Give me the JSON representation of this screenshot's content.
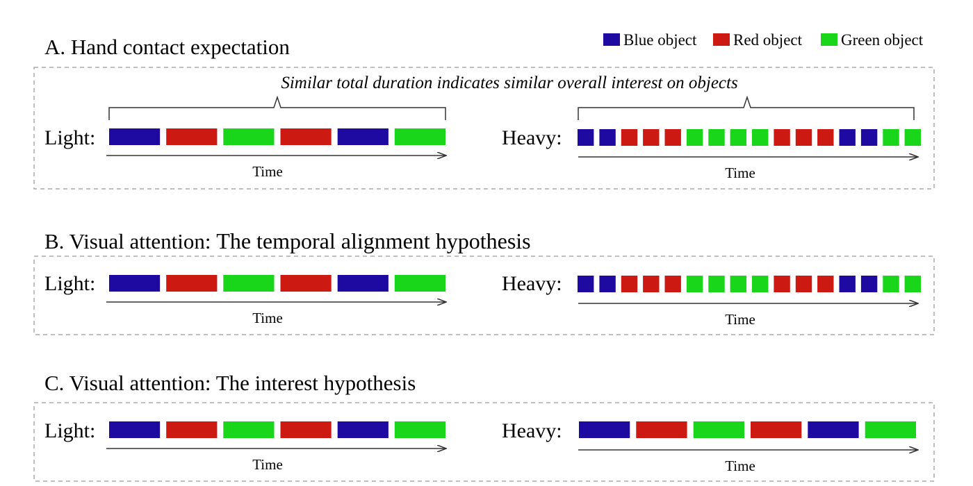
{
  "colors": {
    "blue": "#1e0aa0",
    "red": "#cc1a12",
    "green": "#1ad61a",
    "border": "#aaaaaa",
    "axis": "#333333"
  },
  "legend": [
    {
      "color": "blue",
      "label": "Blue object"
    },
    {
      "color": "red",
      "label": "Red object"
    },
    {
      "color": "green",
      "label": "Green object"
    }
  ],
  "panels": [
    {
      "title_a": "A. Hand contact expectation",
      "title_b": "",
      "note": "Similar total duration indicates similar overall interest on objects",
      "light": {
        "label": "Light:",
        "time_label": "Time",
        "sequence": [
          "blue",
          "red",
          "green",
          "red",
          "blue",
          "green"
        ]
      },
      "heavy": {
        "label": "Heavy:",
        "time_label": "Time",
        "sequence": [
          "blue",
          "blue",
          "red",
          "red",
          "red",
          "green",
          "green",
          "green",
          "green",
          "red",
          "red",
          "red",
          "blue",
          "blue",
          "green",
          "green"
        ]
      }
    },
    {
      "title_a": "B. Visual attention: ",
      "title_b": "The temporal alignment hypothesis",
      "note": "",
      "light": {
        "label": "Light:",
        "time_label": "Time",
        "sequence": [
          "blue",
          "red",
          "green",
          "red",
          "blue",
          "green"
        ]
      },
      "heavy": {
        "label": "Heavy:",
        "time_label": "Time",
        "sequence": [
          "blue",
          "blue",
          "red",
          "red",
          "red",
          "green",
          "green",
          "green",
          "green",
          "red",
          "red",
          "red",
          "blue",
          "blue",
          "green",
          "green"
        ]
      }
    },
    {
      "title_a": "C. Visual attention: The interest hypothesis",
      "title_b": "",
      "note": "",
      "light": {
        "label": "Light:",
        "time_label": "Time",
        "sequence": [
          "blue",
          "red",
          "green",
          "red",
          "blue",
          "green"
        ]
      },
      "heavy": {
        "label": "Heavy:",
        "time_label": "Time",
        "sequence": [
          "blue",
          "red",
          "green",
          "red",
          "blue",
          "green"
        ]
      }
    }
  ]
}
